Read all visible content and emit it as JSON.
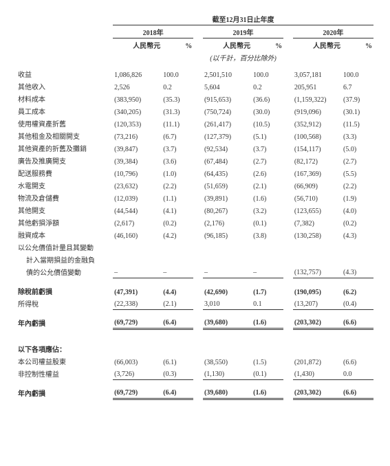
{
  "header": {
    "title": "截至12月31日止年度",
    "years": [
      "2018年",
      "2019年",
      "2020年"
    ],
    "currency": "人民幣元",
    "pct": "%",
    "unit_note": "(以千計，百分比除外)"
  },
  "rows": [
    {
      "label": "收益",
      "v1": "1,086,826",
      "p1": "100.0",
      "v2": "2,501,510",
      "p2": "100.0",
      "v3": "3,057,181",
      "p3": "100.0"
    },
    {
      "label": "其他收入",
      "v1": "2,526",
      "p1": "0.2",
      "v2": "5,604",
      "p2": "0.2",
      "v3": "205,951",
      "p3": "6.7"
    },
    {
      "label": "材料成本",
      "v1": "(383,950)",
      "p1": "(35.3)",
      "v2": "(915,653)",
      "p2": "(36.6)",
      "v3": "(1,159,322)",
      "p3": "(37.9)"
    },
    {
      "label": "員工成本",
      "v1": "(340,205)",
      "p1": "(31.3)",
      "v2": "(750,724)",
      "p2": "(30.0)",
      "v3": "(919,096)",
      "p3": "(30.1)"
    },
    {
      "label": "使用權資產折舊",
      "v1": "(120,353)",
      "p1": "(11.1)",
      "v2": "(261,417)",
      "p2": "(10.5)",
      "v3": "(352,912)",
      "p3": "(11.5)"
    },
    {
      "label": "其他租金及相關開支",
      "v1": "(73,216)",
      "p1": "(6.7)",
      "v2": "(127,379)",
      "p2": "(5.1)",
      "v3": "(100,568)",
      "p3": "(3.3)"
    },
    {
      "label": "其他資產的折舊及攤銷",
      "v1": "(39,847)",
      "p1": "(3.7)",
      "v2": "(92,534)",
      "p2": "(3.7)",
      "v3": "(154,117)",
      "p3": "(5.0)"
    },
    {
      "label": "廣告及推廣開支",
      "v1": "(39,384)",
      "p1": "(3.6)",
      "v2": "(67,484)",
      "p2": "(2.7)",
      "v3": "(82,172)",
      "p3": "(2.7)"
    },
    {
      "label": "配送服務費",
      "v1": "(10,796)",
      "p1": "(1.0)",
      "v2": "(64,435)",
      "p2": "(2.6)",
      "v3": "(167,369)",
      "p3": "(5.5)"
    },
    {
      "label": "水電開支",
      "v1": "(23,632)",
      "p1": "(2.2)",
      "v2": "(51,659)",
      "p2": "(2.1)",
      "v3": "(66,909)",
      "p3": "(2.2)"
    },
    {
      "label": "物流及倉儲費",
      "v1": "(12,039)",
      "p1": "(1.1)",
      "v2": "(39,891)",
      "p2": "(1.6)",
      "v3": "(56,710)",
      "p3": "(1.9)"
    },
    {
      "label": "其他開支",
      "v1": "(44,544)",
      "p1": "(4.1)",
      "v2": "(80,267)",
      "p2": "(3.2)",
      "v3": "(123,655)",
      "p3": "(4.0)"
    },
    {
      "label": "其他虧損淨額",
      "v1": "(2,617)",
      "p1": "(0.2)",
      "v2": "(2,176)",
      "p2": "(0.1)",
      "v3": "(7,382)",
      "p3": "(0.2)"
    },
    {
      "label": "融資成本",
      "v1": "(46,160)",
      "p1": "(4.2)",
      "v2": "(96,185)",
      "p2": "(3.8)",
      "v3": "(130,258)",
      "p3": "(4.3)"
    }
  ],
  "fv_lines": {
    "l1": "以公允價值計量且其變動",
    "l2": "計入當期損益的金融負",
    "l3": "債的公允價值變動",
    "v1": "–",
    "p1": "–",
    "v2": "–",
    "p2": "–",
    "v3": "(132,757)",
    "p3": "(4.3)"
  },
  "pre_tax": {
    "label": "除稅前虧損",
    "v1": "(47,391)",
    "p1": "(4.4)",
    "v2": "(42,690)",
    "p2": "(1.7)",
    "v3": "(190,095)",
    "p3": "(6.2)"
  },
  "tax": {
    "label": "所得稅",
    "v1": "(22,338)",
    "p1": "(2.1)",
    "v2": "3,010",
    "p2": "0.1",
    "v3": "(13,207)",
    "p3": "(0.4)"
  },
  "net_loss": {
    "label": "年內虧損",
    "v1": "(69,729)",
    "p1": "(6.4)",
    "v2": "(39,680)",
    "p2": "(1.6)",
    "v3": "(203,302)",
    "p3": "(6.6)"
  },
  "attrib_header": "以下各項應佔：",
  "attrib_owner": {
    "label": "本公司權益股東",
    "v1": "(66,003)",
    "p1": "(6.1)",
    "v2": "(38,550)",
    "p2": "(1.5)",
    "v3": "(201,872)",
    "p3": "(6.6)"
  },
  "attrib_nci": {
    "label": "非控制性權益",
    "v1": "(3,726)",
    "p1": "(0.3)",
    "v2": "(1,130)",
    "p2": "(0.1)",
    "v3": "(1,430)",
    "p3": "0.0"
  },
  "net_loss2": {
    "label": "年內虧損",
    "v1": "(69,729)",
    "p1": "(6.4)",
    "v2": "(39,680)",
    "p2": "(1.6)",
    "v3": "(203,302)",
    "p3": "(6.6)"
  }
}
